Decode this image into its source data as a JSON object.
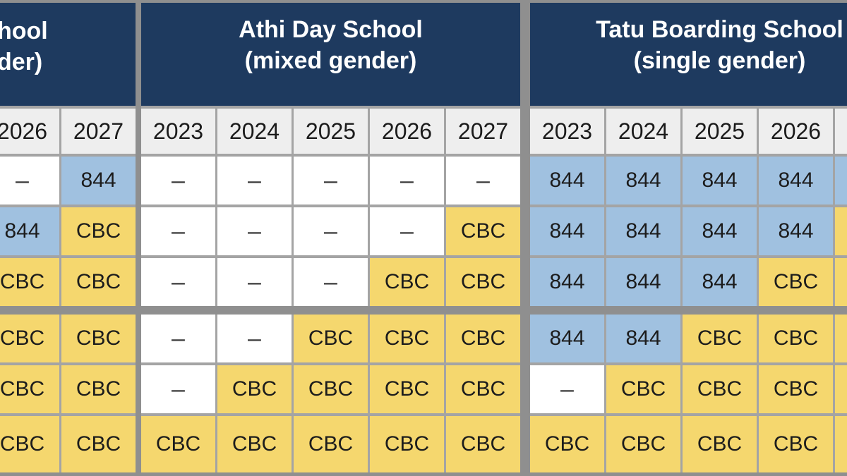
{
  "colors": {
    "header_navy": "#1e3a5f",
    "cell_blue_844": "#a0c1e0",
    "cell_yellow_cbc": "#f5d76e",
    "cell_white_none": "#ffffff",
    "year_header_bg": "#eeeeee",
    "gridline_gray": "#a4a4a4",
    "divider_gray": "#8f8f8f"
  },
  "chart_data": {
    "type": "table",
    "row_count": 6,
    "cell_types": {
      "844": {
        "label": "844",
        "bg": "#a0c1e0"
      },
      "CBC": {
        "label": "CBC",
        "bg": "#f5d76e"
      },
      "dash": {
        "label": "–",
        "bg": "#ffffff"
      },
      "blue_clipped": {
        "label": "",
        "bg": "#a0c1e0"
      },
      "yellow_clipped": {
        "label": "",
        "bg": "#f5d76e"
      }
    },
    "sections": [
      {
        "id": "left-school",
        "title_fragments": [
          "hool",
          "der)"
        ],
        "years": [
          "2026",
          "2027"
        ],
        "rows": [
          [
            "dash",
            "844"
          ],
          [
            "844",
            "CBC"
          ],
          [
            "CBC",
            "CBC"
          ],
          [
            "CBC",
            "CBC"
          ],
          [
            "CBC",
            "CBC"
          ],
          [
            "CBC",
            "CBC"
          ]
        ]
      },
      {
        "id": "athi-day-school",
        "title": "Athi Day School",
        "subtitle": "(mixed gender)",
        "years": [
          "2023",
          "2024",
          "2025",
          "2026",
          "2027"
        ],
        "rows": [
          [
            "dash",
            "dash",
            "dash",
            "dash",
            "dash"
          ],
          [
            "dash",
            "dash",
            "dash",
            "dash",
            "CBC"
          ],
          [
            "dash",
            "dash",
            "dash",
            "CBC",
            "CBC"
          ],
          [
            "dash",
            "dash",
            "CBC",
            "CBC",
            "CBC"
          ],
          [
            "dash",
            "CBC",
            "CBC",
            "CBC",
            "CBC"
          ],
          [
            "CBC",
            "CBC",
            "CBC",
            "CBC",
            "CBC"
          ]
        ]
      },
      {
        "id": "tatu-boarding-school",
        "title": "Tatu Boarding School",
        "subtitle": "(single gender)",
        "years": [
          "2023",
          "2024",
          "2025",
          "2026",
          ""
        ],
        "rows": [
          [
            "844",
            "844",
            "844",
            "844",
            "blue_clipped"
          ],
          [
            "844",
            "844",
            "844",
            "844",
            "yellow_clipped"
          ],
          [
            "844",
            "844",
            "844",
            "CBC",
            "yellow_clipped"
          ],
          [
            "844",
            "844",
            "CBC",
            "CBC",
            "yellow_clipped"
          ],
          [
            "dash",
            "CBC",
            "CBC",
            "CBC",
            "yellow_clipped"
          ],
          [
            "CBC",
            "CBC",
            "CBC",
            "CBC",
            "yellow_clipped"
          ]
        ]
      }
    ]
  }
}
